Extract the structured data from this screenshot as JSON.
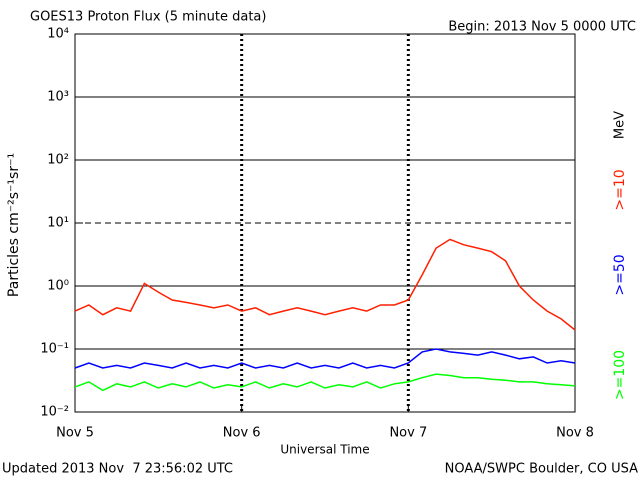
{
  "chart_data": {
    "type": "line",
    "title": "GOES13 Proton Flux (5 minute data)",
    "subtitle": "Begin: 2013 Nov 5 0000 UTC",
    "x_label": "Universal Time",
    "y_label": "Particles cm⁻²s⁻¹sr⁻¹",
    "legend_unit": "MeV",
    "footer_left": "Updated 2013 Nov  7 23:56:02 UTC",
    "footer_right": "NOAA/SWPC Boulder, CO USA",
    "log_y": true,
    "grid": true,
    "dashed_gridlines": [
      10
    ],
    "xlim": [
      0,
      72
    ],
    "xticks": [
      {
        "value": 0,
        "label": "Nov 5"
      },
      {
        "value": 24,
        "label": "Nov 6"
      },
      {
        "value": 48,
        "label": "Nov 7"
      },
      {
        "value": 72,
        "label": "Nov 8"
      }
    ],
    "ylim": [
      0.01,
      10000
    ],
    "yticks": [
      {
        "value": 0.01,
        "label": "10⁻²"
      },
      {
        "value": 0.1,
        "label": "10⁻¹"
      },
      {
        "value": 1,
        "label": "10⁰"
      },
      {
        "value": 10,
        "label": "10¹"
      },
      {
        "value": 100,
        "label": "10²"
      },
      {
        "value": 1000,
        "label": "10³"
      },
      {
        "value": 10000,
        "label": "10⁴"
      }
    ],
    "x": [
      0,
      2,
      4,
      6,
      8,
      10,
      12,
      14,
      16,
      18,
      20,
      22,
      24,
      26,
      28,
      30,
      32,
      34,
      36,
      38,
      40,
      42,
      44,
      46,
      48,
      50,
      52,
      54,
      56,
      58,
      60,
      62,
      64,
      66,
      68,
      70,
      72
    ],
    "series": [
      {
        "name": ">=10",
        "color": "#ff2000",
        "values": [
          0.4,
          0.5,
          0.35,
          0.45,
          0.4,
          1.1,
          0.8,
          0.6,
          0.55,
          0.5,
          0.45,
          0.5,
          0.4,
          0.45,
          0.35,
          0.4,
          0.45,
          0.4,
          0.35,
          0.4,
          0.45,
          0.4,
          0.5,
          0.5,
          0.6,
          1.5,
          4,
          5.5,
          4.5,
          4,
          3.5,
          2.5,
          1,
          0.6,
          0.4,
          0.3,
          0.2
        ]
      },
      {
        "name": ">=50",
        "color": "#0000ff",
        "values": [
          0.05,
          0.06,
          0.05,
          0.055,
          0.05,
          0.06,
          0.055,
          0.05,
          0.06,
          0.05,
          0.055,
          0.05,
          0.06,
          0.05,
          0.055,
          0.05,
          0.06,
          0.05,
          0.055,
          0.05,
          0.06,
          0.05,
          0.055,
          0.05,
          0.06,
          0.09,
          0.1,
          0.09,
          0.085,
          0.08,
          0.09,
          0.08,
          0.07,
          0.075,
          0.06,
          0.065,
          0.06
        ]
      },
      {
        "name": ">=100",
        "color": "#00ff00",
        "values": [
          0.025,
          0.03,
          0.022,
          0.028,
          0.025,
          0.03,
          0.024,
          0.028,
          0.025,
          0.03,
          0.024,
          0.027,
          0.025,
          0.03,
          0.024,
          0.028,
          0.025,
          0.03,
          0.024,
          0.027,
          0.025,
          0.03,
          0.024,
          0.028,
          0.03,
          0.035,
          0.04,
          0.038,
          0.035,
          0.035,
          0.033,
          0.032,
          0.03,
          0.03,
          0.028,
          0.027,
          0.026
        ]
      }
    ]
  }
}
